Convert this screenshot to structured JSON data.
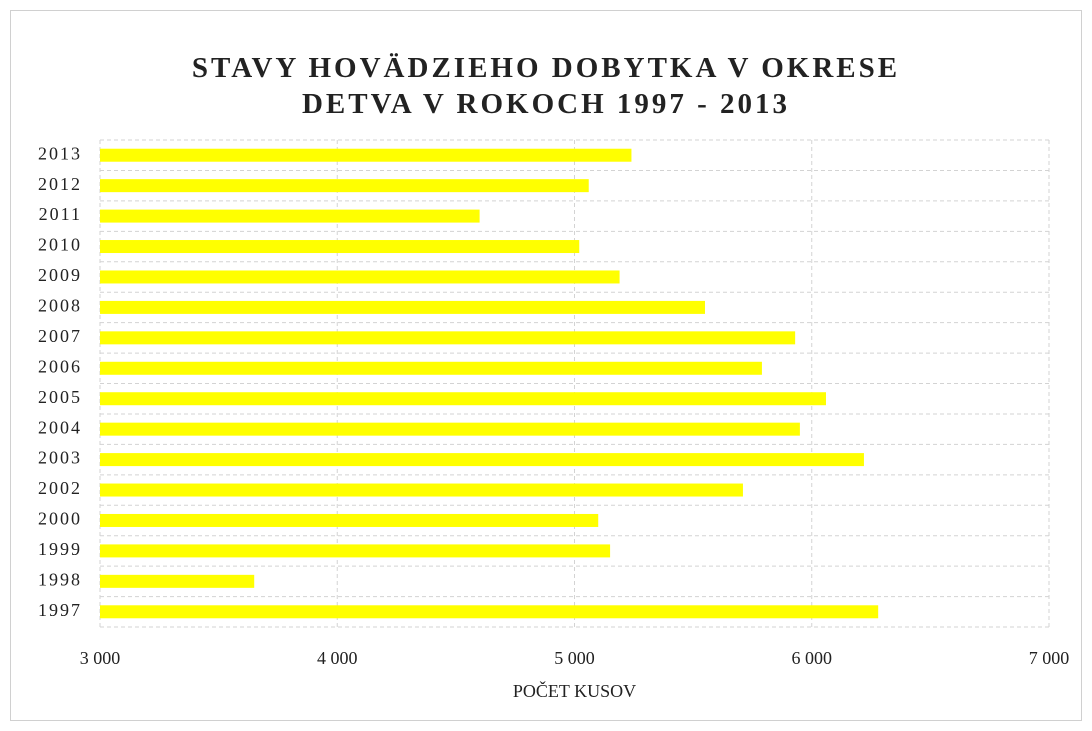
{
  "chart_data": {
    "type": "bar",
    "orientation": "horizontal",
    "title": "STAVY HOVÄDZIEHO DOBYTKA V OKRESE DETVA V ROKOCH 1997 - 2013",
    "xlabel": "POČET KUSOV",
    "categories": [
      "1997",
      "1998",
      "1999",
      "2000",
      "2002",
      "2003",
      "2004",
      "2005",
      "2006",
      "2007",
      "2008",
      "2009",
      "2010",
      "2011",
      "2012",
      "2013"
    ],
    "values": [
      6280,
      3650,
      5150,
      5100,
      5710,
      6220,
      5950,
      6060,
      5790,
      5930,
      5550,
      5190,
      5020,
      4600,
      5060,
      5240
    ],
    "color": "#ffff00",
    "xlim": [
      3000,
      7000
    ],
    "xticks": [
      {
        "value": 3000,
        "label": "3 000"
      },
      {
        "value": 4000,
        "label": "4 000"
      },
      {
        "value": 5000,
        "label": "5 000"
      },
      {
        "value": 6000,
        "label": "6 000"
      },
      {
        "value": 7000,
        "label": "7 000"
      }
    ],
    "grid": true
  }
}
